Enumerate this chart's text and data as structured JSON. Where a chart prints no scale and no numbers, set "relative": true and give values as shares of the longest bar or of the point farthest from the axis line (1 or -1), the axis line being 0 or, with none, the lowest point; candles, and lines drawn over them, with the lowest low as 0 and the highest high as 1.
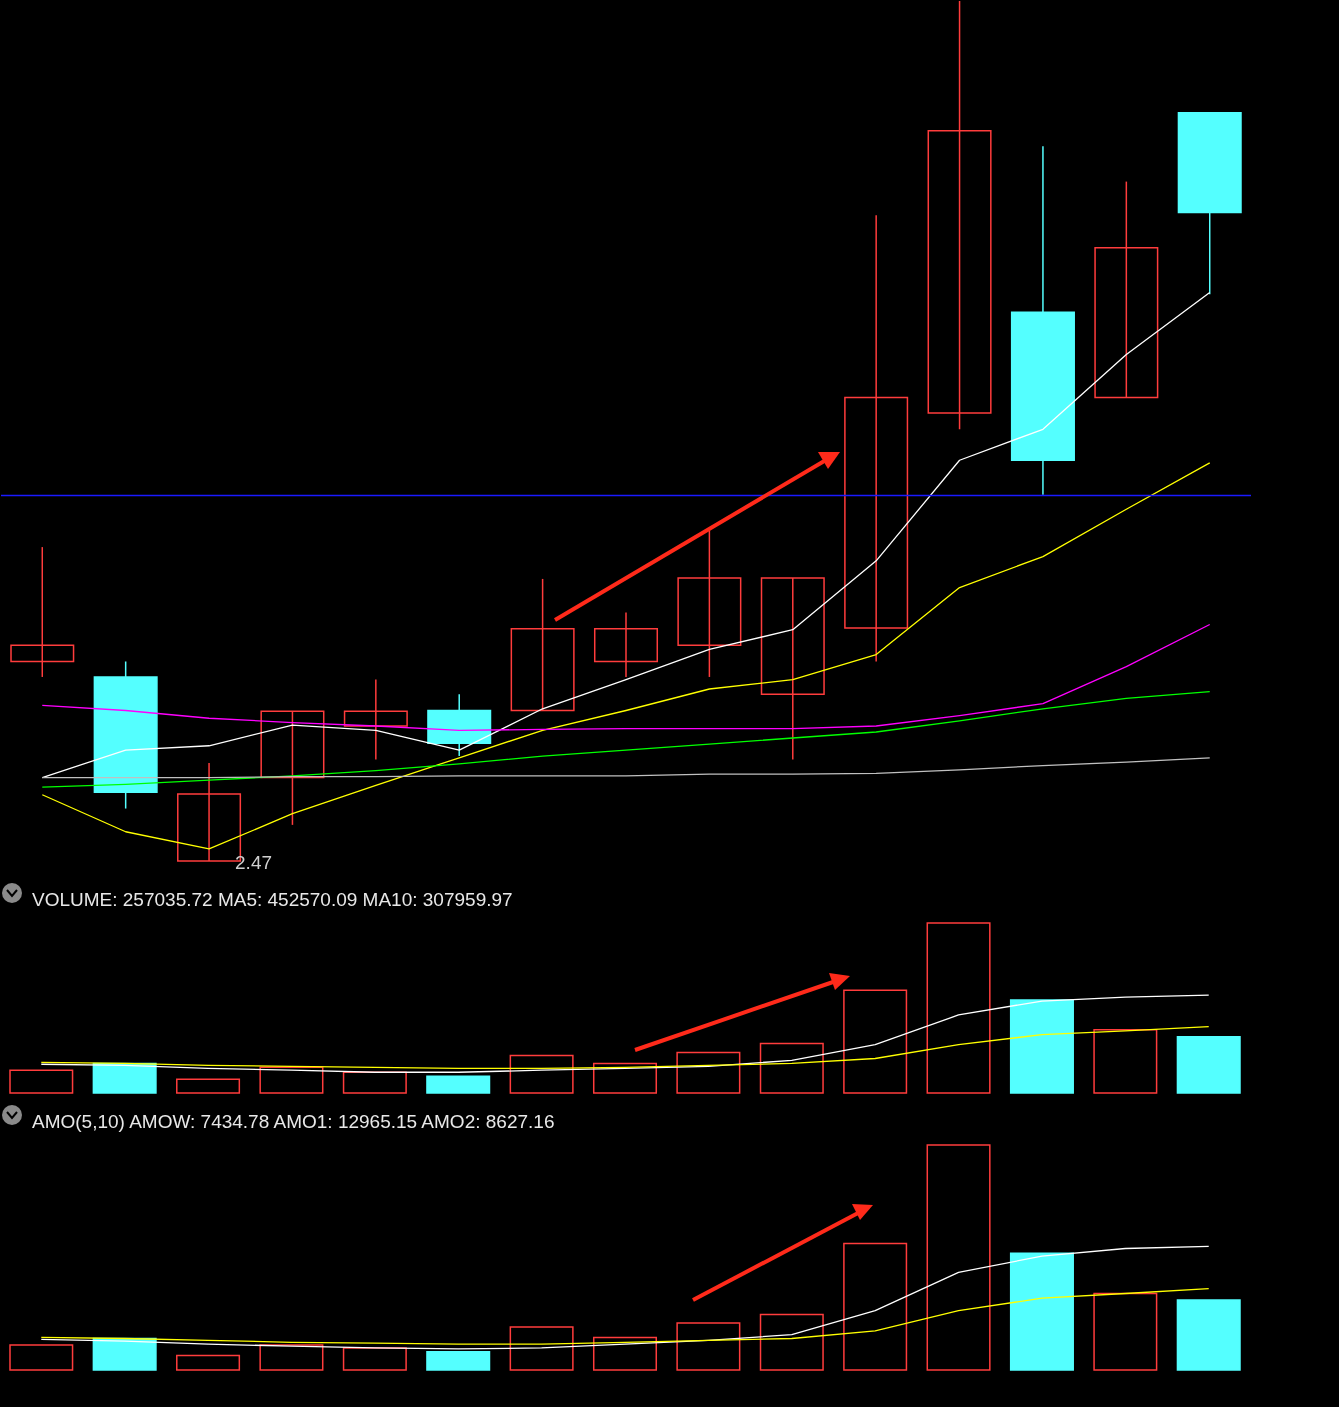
{
  "chart_data": [
    {
      "type": "candlestick",
      "relative": true,
      "categories": [
        null,
        null,
        null,
        null,
        null,
        null,
        null,
        null,
        null,
        null,
        null,
        null,
        null,
        null,
        null
      ],
      "ohlc": [
        [
          0.232,
          0.365,
          0.214,
          0.251
        ],
        [
          0.214,
          0.232,
          0.061,
          0.08
        ],
        [
          0,
          0.114,
          0,
          0.078
        ],
        [
          0.097,
          0.174,
          0.042,
          0.174
        ],
        [
          0.157,
          0.211,
          0.118,
          0.174
        ],
        [
          0.175,
          0.194,
          0.122,
          0.137
        ],
        [
          0.175,
          0.328,
          0.175,
          0.27
        ],
        [
          0.232,
          0.289,
          0.214,
          0.27
        ],
        [
          0.251,
          0.385,
          0.214,
          0.329
        ],
        [
          0.194,
          0.329,
          0.118,
          0.329
        ],
        [
          0.271,
          0.751,
          0.232,
          0.539
        ],
        [
          0.521,
          1,
          0.502,
          0.849
        ],
        [
          0.638,
          0.831,
          0.426,
          0.466
        ],
        [
          0.539,
          0.79,
          0.539,
          0.713
        ],
        [
          0.87,
          0.87,
          0.659,
          0.754
        ]
      ],
      "colors": [
        "#ff3c3c",
        "#54ffff",
        "#ff3c3c",
        "#ff3c3c",
        "#ff3c3c",
        "#54ffff",
        "#ff3c3c",
        "#ff3c3c",
        "#ff3c3c",
        "#ff3c3c",
        "#ff3c3c",
        "#ff3c3c",
        "#54ffff",
        "#ff3c3c",
        "#54ffff"
      ],
      "series": [
        {
          "type": "line",
          "color": "#ffffff",
          "values": [
            0.097,
            0.129,
            0.134,
            0.158,
            0.152,
            0.129,
            0.177,
            0.211,
            0.246,
            0.269,
            0.349,
            0.466,
            0.502,
            0.589,
            0.661
          ]
        },
        {
          "type": "line",
          "color": "#ffff00",
          "values": [
            0.077,
            0.034,
            0.014,
            0.055,
            0.088,
            0.12,
            0.152,
            0.175,
            0.2,
            0.211,
            0.24,
            0.318,
            0.354,
            0.409,
            0.463
          ]
        },
        {
          "type": "line",
          "color": "#ff00ff",
          "values": [
            0.181,
            0.175,
            0.166,
            0.161,
            0.157,
            0.152,
            0.153,
            0.154,
            0.154,
            0.154,
            0.157,
            0.169,
            0.183,
            0.226,
            0.275
          ]
        },
        {
          "type": "line",
          "color": "#00ff00",
          "values": [
            0.086,
            0.089,
            0.094,
            0.099,
            0.105,
            0.113,
            0.122,
            0.129,
            0.136,
            0.143,
            0.15,
            0.163,
            0.177,
            0.189,
            0.197
          ]
        },
        {
          "type": "line",
          "color": "#c0c0c0",
          "values": [
            0.097,
            0.097,
            0.097,
            0.098,
            0.098,
            0.099,
            0.099,
            0.099,
            0.101,
            0.101,
            0.102,
            0.106,
            0.111,
            0.115,
            0.12
          ]
        }
      ],
      "ref_lines": [
        {
          "axis": "y",
          "value": 0.425,
          "color": "#1a1aff"
        }
      ],
      "annotations": [
        "2.47"
      ]
    },
    {
      "type": "bar",
      "relative": true,
      "title": "VOLUME: 257035.72 MA5: 452570.09 MA10: 307959.97",
      "categories": [
        null,
        null,
        null,
        null,
        null,
        null,
        null,
        null,
        null,
        null,
        null,
        null,
        null,
        null,
        null
      ],
      "series": [
        {
          "colors": [
            "#ff3c3c",
            "#54ffff",
            "#ff3c3c",
            "#ff3c3c",
            "#ff3c3c",
            "#54ffff",
            "#ff3c3c",
            "#ff3c3c",
            "#ff3c3c",
            "#ff3c3c",
            "#ff3c3c",
            "#ff3c3c",
            "#54ffff",
            "#ff3c3c",
            "#54ffff"
          ],
          "values": [
            0.134,
            0.174,
            0.081,
            0.151,
            0.122,
            0.099,
            0.221,
            0.174,
            0.238,
            0.291,
            0.605,
            1,
            0.547,
            0.372,
            0.331
          ]
        },
        {
          "type": "line",
          "color": "#ffffff",
          "values": [
            0.169,
            0.163,
            0.145,
            0.134,
            0.122,
            0.122,
            0.134,
            0.145,
            0.157,
            0.192,
            0.285,
            0.459,
            0.541,
            0.564,
            0.576
          ]
        },
        {
          "type": "line",
          "color": "#ffff00",
          "values": [
            0.18,
            0.174,
            0.163,
            0.157,
            0.151,
            0.145,
            0.145,
            0.151,
            0.163,
            0.174,
            0.203,
            0.285,
            0.343,
            0.366,
            0.39
          ]
        }
      ]
    },
    {
      "type": "bar",
      "relative": true,
      "title": "AMO(5,10) AMOW: 7434.78 AMO1: 12965.15 AMO2: 8627.16",
      "categories": [
        null,
        null,
        null,
        null,
        null,
        null,
        null,
        null,
        null,
        null,
        null,
        null,
        null,
        null,
        null
      ],
      "series": [
        {
          "colors": [
            "#ff3c3c",
            "#54ffff",
            "#ff3c3c",
            "#ff3c3c",
            "#ff3c3c",
            "#54ffff",
            "#ff3c3c",
            "#ff3c3c",
            "#ff3c3c",
            "#ff3c3c",
            "#ff3c3c",
            "#ff3c3c",
            "#54ffff",
            "#ff3c3c",
            "#54ffff"
          ],
          "values": [
            0.111,
            0.14,
            0.064,
            0.111,
            0.098,
            0.081,
            0.191,
            0.145,
            0.209,
            0.247,
            0.562,
            1,
            0.519,
            0.34,
            0.311
          ]
        },
        {
          "type": "line",
          "color": "#ffffff",
          "values": [
            0.136,
            0.128,
            0.115,
            0.106,
            0.098,
            0.094,
            0.098,
            0.115,
            0.132,
            0.157,
            0.264,
            0.434,
            0.506,
            0.54,
            0.549
          ]
        },
        {
          "type": "line",
          "color": "#ffff00",
          "values": [
            0.145,
            0.14,
            0.132,
            0.123,
            0.119,
            0.115,
            0.115,
            0.123,
            0.132,
            0.14,
            0.174,
            0.264,
            0.319,
            0.34,
            0.362
          ]
        }
      ]
    }
  ]
}
